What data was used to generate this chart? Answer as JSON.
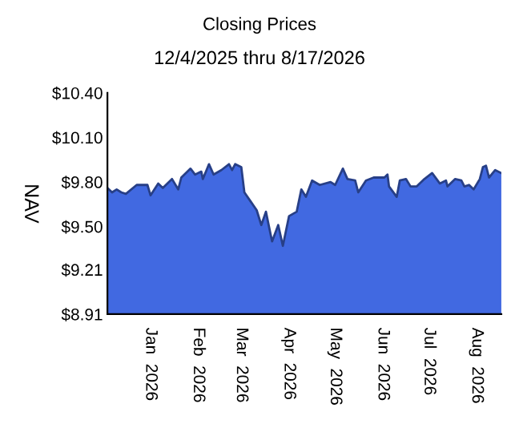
{
  "chart_data": {
    "type": "area",
    "title": "Closing Prices",
    "subtitle": "12/4/2025 thru 8/17/2026",
    "ylabel": "NAV",
    "x": [
      "2025-12-04",
      "2025-12-07",
      "2025-12-10",
      "2025-12-13",
      "2025-12-16",
      "2025-12-23",
      "2025-12-30",
      "2026-01-01",
      "2026-01-06",
      "2026-01-09",
      "2026-01-15",
      "2026-01-19",
      "2026-01-21",
      "2026-01-27",
      "2026-01-30",
      "2026-02-03",
      "2026-02-04",
      "2026-02-08",
      "2026-02-11",
      "2026-02-16",
      "2026-02-21",
      "2026-02-23",
      "2026-02-25",
      "2026-03-01",
      "2026-03-03",
      "2026-03-07",
      "2026-03-11",
      "2026-03-14",
      "2026-03-17",
      "2026-03-21",
      "2026-03-25",
      "2026-03-28",
      "2026-04-01",
      "2026-04-06",
      "2026-04-09",
      "2026-04-12",
      "2026-04-16",
      "2026-04-21",
      "2026-04-28",
      "2026-05-01",
      "2026-05-06",
      "2026-05-09",
      "2026-05-14",
      "2026-05-16",
      "2026-05-21",
      "2026-05-26",
      "2026-06-02",
      "2026-06-04",
      "2026-06-05",
      "2026-06-10",
      "2026-06-12",
      "2026-06-16",
      "2026-06-19",
      "2026-06-23",
      "2026-06-28",
      "2026-07-03",
      "2026-07-08",
      "2026-07-12",
      "2026-07-13",
      "2026-07-18",
      "2026-07-22",
      "2026-07-24",
      "2026-07-27",
      "2026-07-30",
      "2026-08-03",
      "2026-08-05",
      "2026-08-07",
      "2026-08-09",
      "2026-08-13",
      "2026-08-17"
    ],
    "series": [
      {
        "color": "#4169e1",
        "values": [
          9.76,
          9.73,
          9.75,
          9.73,
          9.72,
          9.78,
          9.78,
          9.71,
          9.79,
          9.76,
          9.82,
          9.75,
          9.83,
          9.89,
          9.85,
          9.87,
          9.82,
          9.92,
          9.85,
          9.88,
          9.92,
          9.88,
          9.92,
          9.9,
          9.73,
          9.67,
          9.61,
          9.51,
          9.6,
          9.4,
          9.51,
          9.37,
          9.57,
          9.6,
          9.75,
          9.7,
          9.81,
          9.78,
          9.8,
          9.78,
          9.89,
          9.82,
          9.81,
          9.73,
          9.81,
          9.83,
          9.83,
          9.85,
          9.77,
          9.7,
          9.81,
          9.82,
          9.77,
          9.77,
          9.82,
          9.86,
          9.79,
          9.81,
          9.77,
          9.82,
          9.81,
          9.77,
          9.78,
          9.75,
          9.82,
          9.9,
          9.91,
          9.83,
          9.88,
          9.86
        ]
      }
    ],
    "xlim": [
      "2025-12-04",
      "2026-08-17"
    ],
    "xticks": [
      {
        "value": "2026-01-01",
        "label": "Jan  2026"
      },
      {
        "value": "2026-02-01",
        "label": "Feb  2026"
      },
      {
        "value": "2026-03-01",
        "label": "Mar  2026"
      },
      {
        "value": "2026-04-01",
        "label": "Apr  2026"
      },
      {
        "value": "2026-05-01",
        "label": "May  2026"
      },
      {
        "value": "2026-06-01",
        "label": "Jun  2026"
      },
      {
        "value": "2026-07-01",
        "label": "Jul  2026"
      },
      {
        "value": "2026-08-01",
        "label": "Aug  2026"
      }
    ],
    "ylim": [
      8.91,
      10.4
    ],
    "yticks": [
      {
        "value": 8.91,
        "label": "$8.91"
      },
      {
        "value": 9.21,
        "label": "$9.21"
      },
      {
        "value": 9.5,
        "label": "$9.50"
      },
      {
        "value": 9.8,
        "label": "$9.80"
      },
      {
        "value": 10.1,
        "label": "$10.10"
      },
      {
        "value": 10.4,
        "label": "$10.40"
      }
    ]
  }
}
